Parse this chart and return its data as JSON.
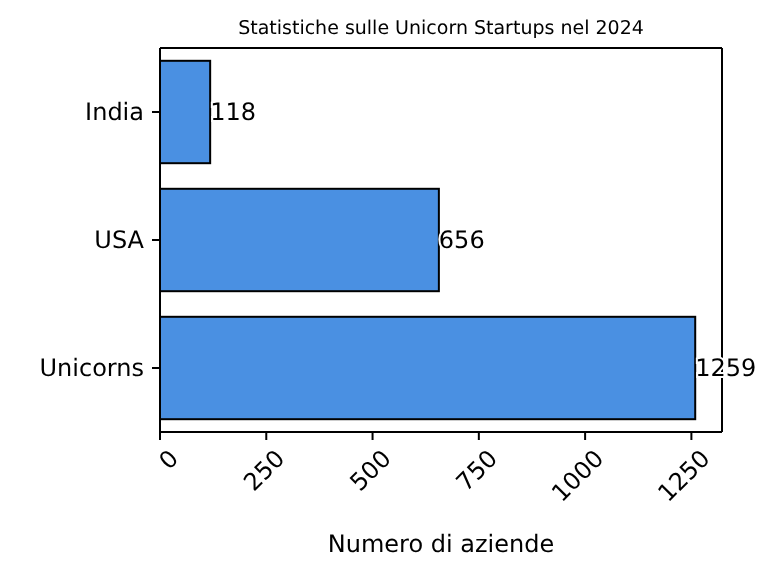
{
  "chart_data": {
    "type": "bar",
    "orientation": "horizontal",
    "title": "Statistiche sulle Unicorn Startups nel 2024",
    "xlabel": "Numero di aziende",
    "categories": [
      "India",
      "USA",
      "Unicorns"
    ],
    "values": [
      118,
      656,
      1259
    ],
    "color": "#4a90e2",
    "xlim": [
      0,
      1322
    ],
    "xticks": [
      0,
      250,
      500,
      750,
      1000,
      1250
    ],
    "data_labels": true
  }
}
